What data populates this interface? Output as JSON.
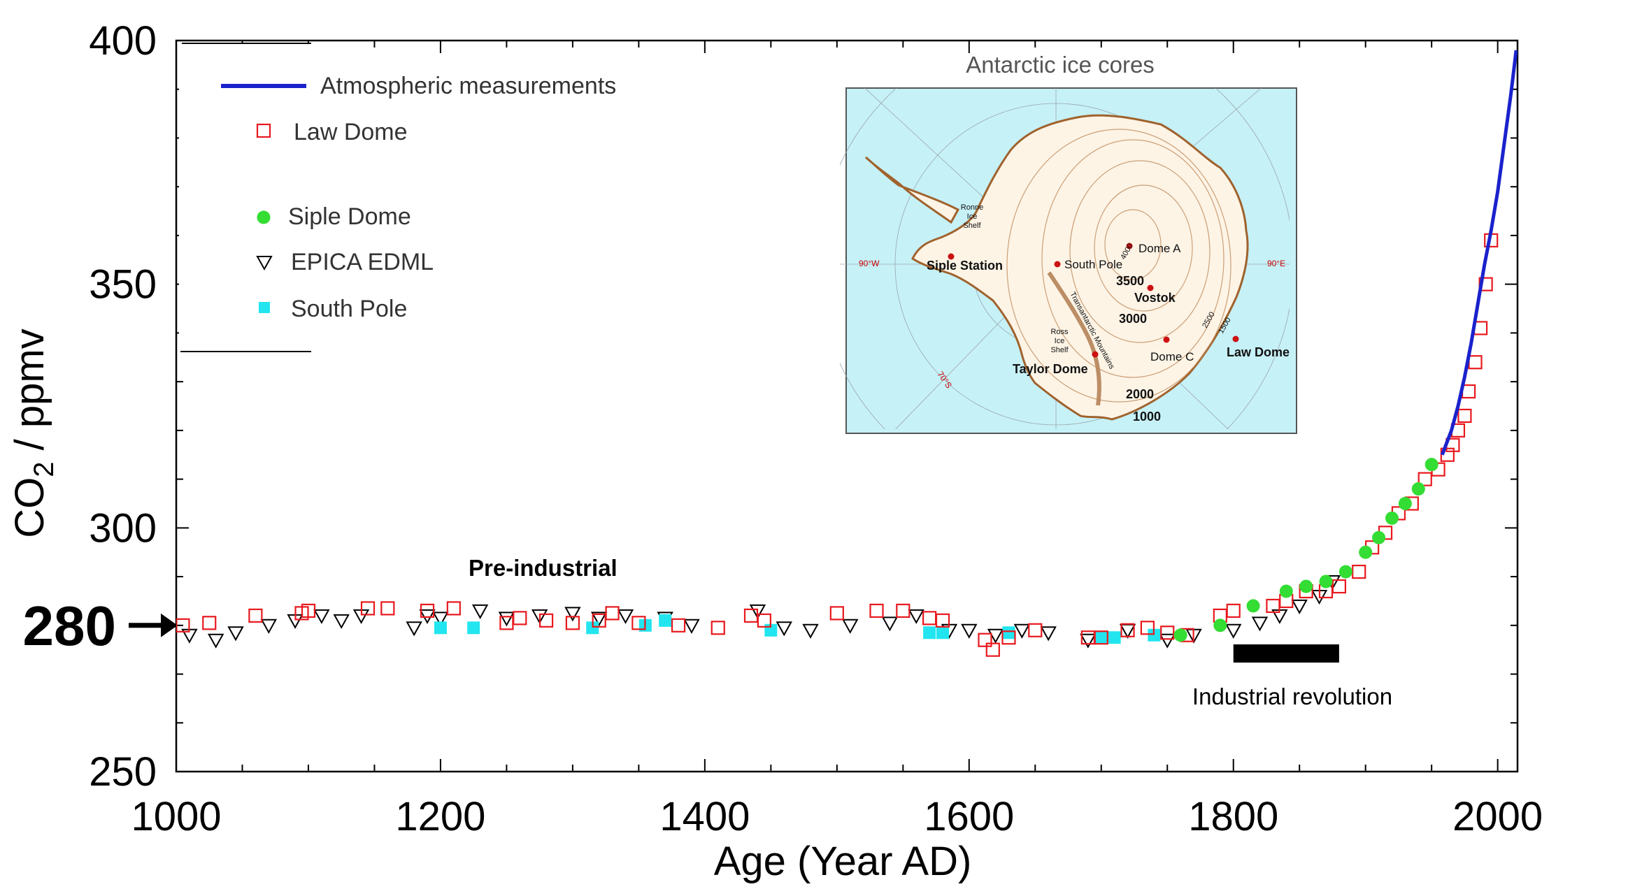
{
  "chart_data": {
    "type": "scatter",
    "xlabel": "Age (Year AD)",
    "ylabel_main": "CO",
    "ylabel_sub": "2",
    "ylabel_unit": " / ppmv",
    "xlim": [
      1000,
      2015
    ],
    "ylim": [
      250,
      400
    ],
    "xticks": [
      1000,
      1200,
      1400,
      1600,
      1800,
      2000
    ],
    "yticks": [
      250,
      300,
      350,
      400
    ],
    "xtick_labels": [
      "1000",
      "1200",
      "1400",
      "1600",
      "1800",
      "2000"
    ],
    "ytick_labels": [
      "250",
      "300",
      "350",
      "400"
    ],
    "reference": {
      "value": 280,
      "label": "280"
    },
    "legend": {
      "position": "top-left",
      "entries": [
        "Atmospheric measurements",
        "Law Dome",
        "Siple Dome",
        "EPICA EDML",
        "South Pole"
      ]
    },
    "series": [
      {
        "name": "Atmospheric measurements",
        "marker": "line",
        "color": "#1a22cc",
        "x": [
          1958,
          1965,
          1970,
          1975,
          1980,
          1985,
          1990,
          1995,
          2000,
          2005,
          2010,
          2014
        ],
        "y": [
          315,
          320,
          325,
          331,
          338,
          346,
          354,
          361,
          369,
          379,
          389,
          398
        ]
      },
      {
        "name": "Law Dome",
        "marker": "open-square",
        "color": "#e8191e",
        "x": [
          1005,
          1025,
          1060,
          1095,
          1100,
          1145,
          1160,
          1190,
          1210,
          1250,
          1260,
          1280,
          1300,
          1320,
          1330,
          1350,
          1380,
          1410,
          1435,
          1445,
          1500,
          1530,
          1550,
          1570,
          1580,
          1612,
          1618,
          1630,
          1650,
          1690,
          1700,
          1720,
          1735,
          1750,
          1765,
          1790,
          1800,
          1830,
          1840,
          1855,
          1870,
          1880,
          1895,
          1905,
          1915,
          1925,
          1935,
          1945,
          1955,
          1962,
          1966,
          1970,
          1975,
          1978,
          1983,
          1987,
          1991,
          1995
        ],
        "y": [
          280,
          280.5,
          282,
          282.5,
          283,
          283.5,
          283.5,
          283,
          283.5,
          280.5,
          281.5,
          281,
          280.5,
          281,
          282.5,
          280.5,
          280,
          279.5,
          282,
          281,
          282.5,
          283,
          283,
          281.5,
          281,
          277,
          275,
          277.5,
          279,
          277.5,
          277.5,
          279,
          279.5,
          278.5,
          278,
          282,
          283,
          284,
          285,
          287,
          287,
          288,
          291,
          296,
          299,
          303,
          305,
          310,
          312,
          315,
          317,
          320,
          323,
          328,
          334,
          341,
          350,
          359
        ]
      },
      {
        "name": "Siple Dome",
        "marker": "filled-circle",
        "color": "#33dd33",
        "x": [
          1760,
          1790,
          1815,
          1840,
          1855,
          1870,
          1885,
          1900,
          1910,
          1920,
          1930,
          1940,
          1950
        ],
        "y": [
          278,
          280,
          284,
          287,
          288,
          289,
          291,
          295,
          298,
          302,
          305,
          308,
          313
        ]
      },
      {
        "name": "EPICA EDML",
        "marker": "open-triangle-down",
        "color": "#000000",
        "x": [
          1010,
          1030,
          1045,
          1070,
          1090,
          1110,
          1125,
          1140,
          1180,
          1190,
          1200,
          1230,
          1250,
          1275,
          1300,
          1320,
          1340,
          1370,
          1390,
          1440,
          1460,
          1480,
          1510,
          1540,
          1560,
          1585,
          1600,
          1620,
          1640,
          1660,
          1690,
          1720,
          1750,
          1770,
          1800,
          1820,
          1835,
          1850,
          1865,
          1875
        ],
        "y": [
          278,
          277,
          278.5,
          280,
          281,
          282,
          281,
          282,
          279.5,
          282,
          281.5,
          283,
          281.5,
          282,
          282.5,
          281.5,
          282,
          281.5,
          280,
          283,
          279.5,
          279,
          280,
          280.5,
          282,
          279,
          279,
          278,
          279,
          278.5,
          277,
          279,
          277,
          278,
          279,
          280.5,
          282,
          284,
          286,
          289
        ]
      },
      {
        "name": "South Pole",
        "marker": "filled-square",
        "color": "#22e5ef",
        "x": [
          1200,
          1225,
          1315,
          1355,
          1370,
          1450,
          1570,
          1580,
          1630,
          1700,
          1710,
          1740
        ],
        "y": [
          279.5,
          279.5,
          279.5,
          280,
          281,
          279,
          278.5,
          278.5,
          278.5,
          277.5,
          277.5,
          278
        ]
      }
    ],
    "annotations": {
      "pre_industrial": "Pre-industrial",
      "industrial_revolution": "Industrial revolution",
      "industrial_range": [
        1800,
        1880
      ]
    },
    "inset": {
      "title": "Antarctic ice cores",
      "labels": {
        "ronne": "Ronne",
        "ice": "Ice",
        "shelf": "Shelf",
        "siple_station": "Siple Station",
        "south_pole": "South Pole",
        "dome_a": "Dome A",
        "vostok": "Vostok",
        "dome_c": "Dome C",
        "law_dome": "Law Dome",
        "taylor_dome": "Taylor Dome",
        "ross": "Ross",
        "transantarctic": "Transantarctic Mountains",
        "c3500": "3500",
        "c3000": "3000",
        "c2000": "2000",
        "c1000": "1000",
        "c4000": "4000",
        "c2500": "2500",
        "c1500": "1500",
        "lon_w": "90°W",
        "lon_e": "90°E",
        "lat": "70°S"
      }
    }
  }
}
